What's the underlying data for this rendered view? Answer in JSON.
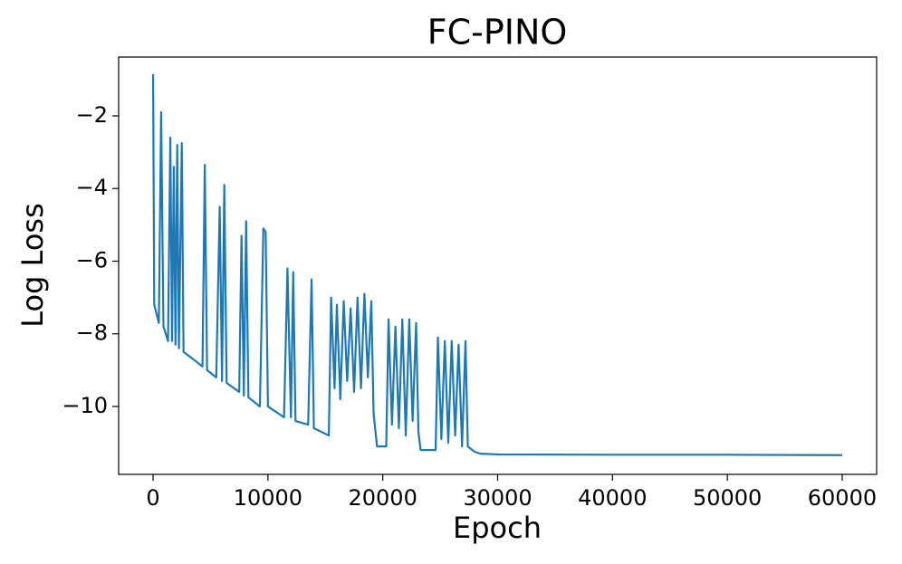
{
  "chart_data": {
    "type": "line",
    "title": "FC-PINO",
    "x_label": "Epoch",
    "y_label": "Log Loss",
    "xlim": [
      -3000,
      63000
    ],
    "ylim": [
      -11.87,
      -0.38
    ],
    "xticks": [
      0,
      10000,
      20000,
      30000,
      40000,
      50000,
      60000
    ],
    "yticks": [
      {
        "value": -2,
        "label": "−2"
      },
      {
        "value": -4,
        "label": "−4"
      },
      {
        "value": -6,
        "label": "−6"
      },
      {
        "value": -8,
        "label": "−8"
      },
      {
        "value": -10,
        "label": "−10"
      }
    ],
    "grid": false,
    "series": [
      {
        "color": "#1f77b4",
        "x": [
          0,
          100,
          500,
          700,
          900,
          1300,
          1500,
          1650,
          1800,
          1950,
          2100,
          2250,
          2500,
          2650,
          3500,
          4300,
          4500,
          4700,
          5500,
          5800,
          6000,
          6200,
          6400,
          7500,
          7700,
          7900,
          8100,
          8300,
          9300,
          9600,
          9800,
          10000,
          11400,
          11700,
          12000,
          12200,
          12400,
          13500,
          13800,
          14000,
          15300,
          15500,
          15800,
          16000,
          16300,
          16600,
          16900,
          17200,
          17500,
          17800,
          18100,
          18400,
          18700,
          19000,
          19200,
          19500,
          20300,
          20500,
          20800,
          21100,
          21400,
          21700,
          22000,
          22300,
          22600,
          22900,
          23100,
          23300,
          24600,
          24800,
          25100,
          25400,
          25700,
          26000,
          26300,
          26600,
          26900,
          27200,
          27400,
          28000,
          28500,
          30000,
          40000,
          50000,
          60000
        ],
        "values": [
          -0.85,
          -7.2,
          -7.7,
          -1.9,
          -7.8,
          -8.2,
          -2.6,
          -8.2,
          -3.4,
          -8.3,
          -2.8,
          -8.4,
          -2.75,
          -8.5,
          -8.7,
          -8.9,
          -3.35,
          -9.0,
          -9.2,
          -4.5,
          -9.3,
          -3.9,
          -9.35,
          -9.6,
          -5.3,
          -9.7,
          -4.9,
          -9.75,
          -10.0,
          -5.1,
          -5.2,
          -10.0,
          -10.3,
          -6.2,
          -10.3,
          -6.3,
          -10.4,
          -10.5,
          -6.5,
          -10.6,
          -10.8,
          -7.0,
          -9.5,
          -7.2,
          -9.8,
          -7.1,
          -9.3,
          -7.3,
          -9.6,
          -7.0,
          -9.5,
          -6.9,
          -9.2,
          -7.1,
          -10.2,
          -11.1,
          -11.1,
          -7.6,
          -10.5,
          -7.8,
          -10.6,
          -7.6,
          -10.8,
          -7.6,
          -10.4,
          -7.7,
          -10.7,
          -11.2,
          -11.2,
          -8.1,
          -10.9,
          -8.2,
          -11.0,
          -8.2,
          -10.8,
          -8.3,
          -11.1,
          -8.2,
          -11.1,
          -11.25,
          -11.3,
          -11.32,
          -11.33,
          -11.33,
          -11.34
        ]
      }
    ]
  }
}
